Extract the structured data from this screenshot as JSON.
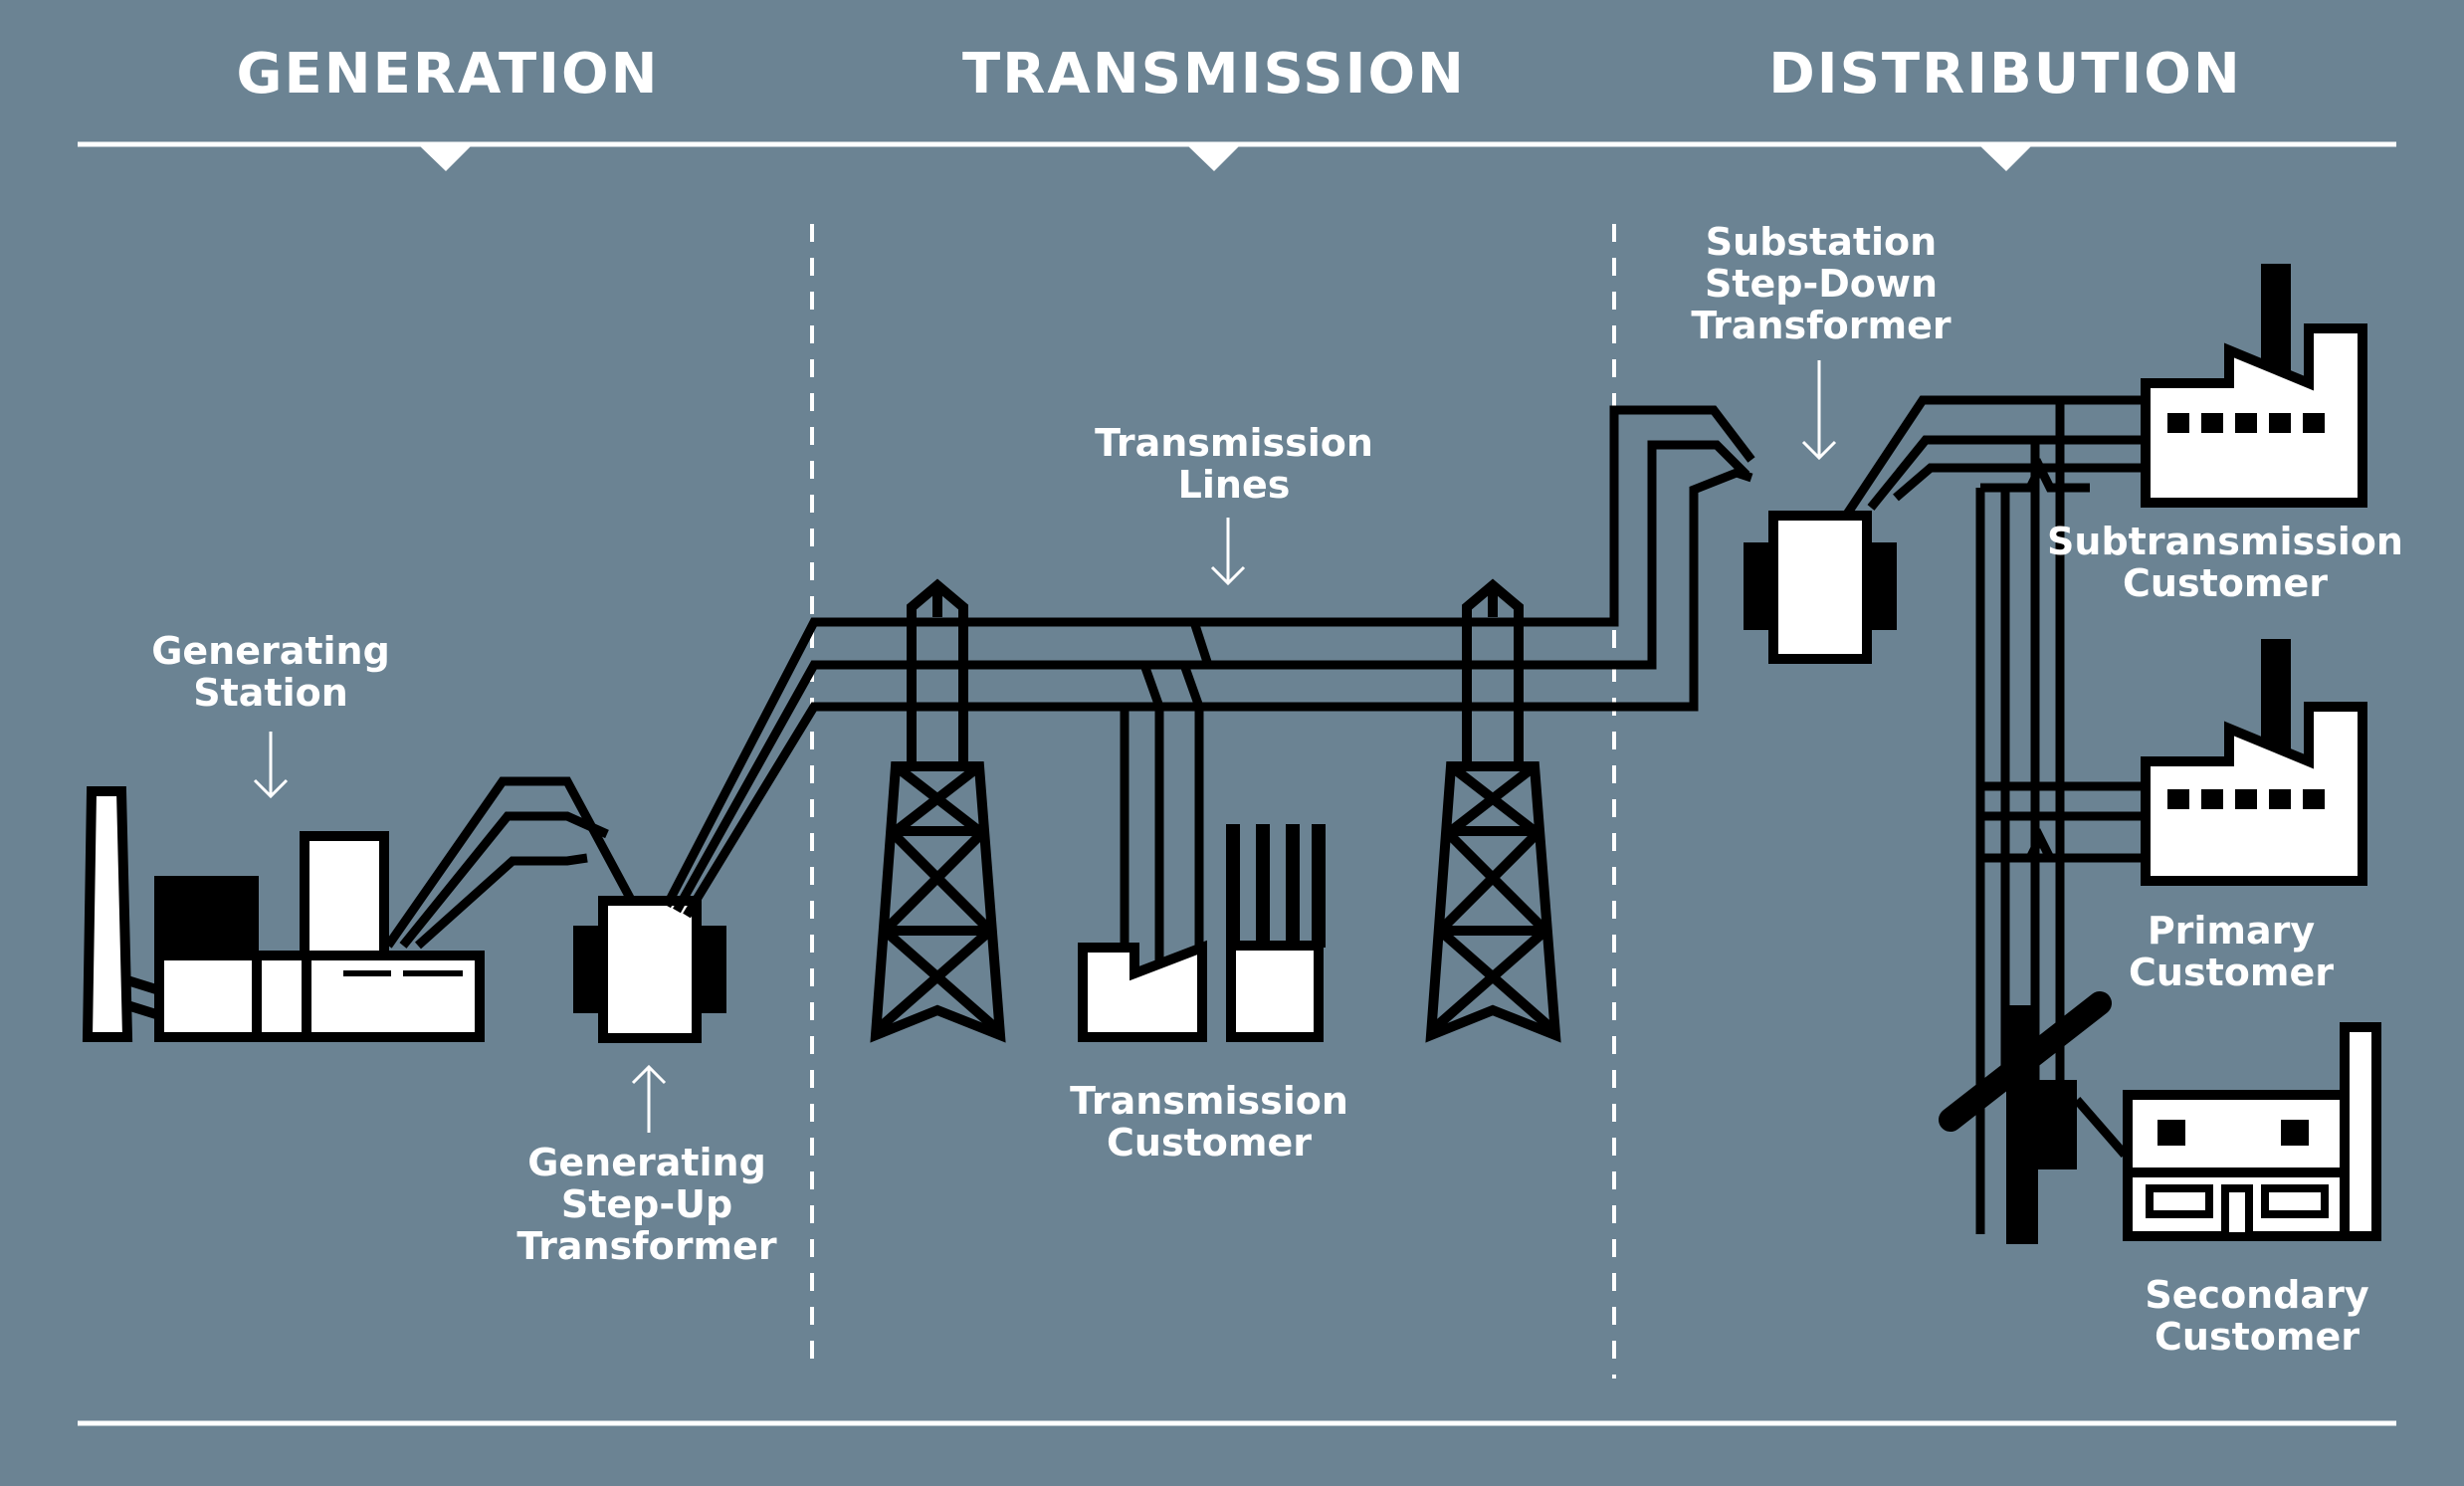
{
  "headers": {
    "generation": "GENERATION",
    "transmission": "TRANSMISSION",
    "distribution": "DISTRIBUTION"
  },
  "labels": {
    "generating_station": [
      "Generating",
      "Station"
    ],
    "generating_step_up": [
      "Generating",
      "Step-Up",
      "Transformer"
    ],
    "transmission_lines": [
      "Transmission",
      "Lines"
    ],
    "transmission_customer": [
      "Transmission",
      "Customer"
    ],
    "substation_step_down": [
      "Substation",
      "Step-Down",
      "Transformer"
    ],
    "subtransmission_customer": [
      "Subtransmission",
      "Customer"
    ],
    "primary_customer": [
      "Primary",
      "Customer"
    ],
    "secondary_customer": [
      "Secondary",
      "Customer"
    ]
  },
  "colors": {
    "background": "#6b8393",
    "line": "#000000",
    "fill": "#ffffff",
    "text": "#ffffff"
  }
}
